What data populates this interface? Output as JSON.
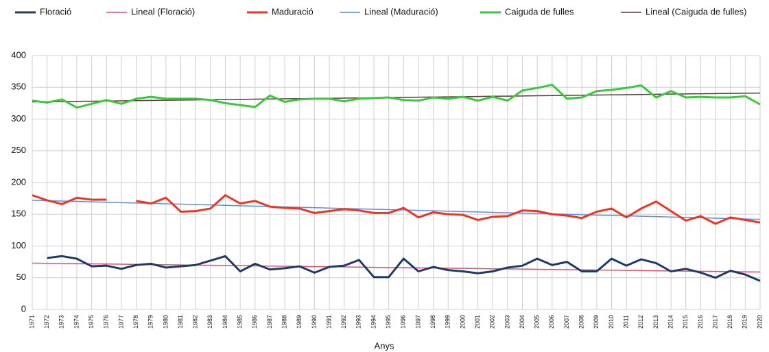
{
  "chart_data": {
    "type": "line",
    "x_label": "Anys",
    "categories": [
      "1971",
      "1972",
      "1973",
      "1974",
      "1975",
      "1976",
      "1977",
      "1978",
      "1979",
      "1980",
      "1981",
      "1982",
      "1983",
      "1984",
      "1985",
      "1986",
      "1987",
      "1988",
      "1989",
      "1990",
      "1991",
      "1992",
      "1993",
      "1994",
      "1995",
      "1996",
      "1997",
      "1998",
      "1999",
      "2000",
      "2001",
      "2002",
      "2003",
      "2004",
      "2005",
      "2006",
      "2007",
      "2008",
      "2009",
      "2010",
      "2011",
      "2012",
      "2013",
      "2014",
      "2015",
      "2016",
      "2017",
      "2018",
      "2019",
      "2020"
    ],
    "series": [
      {
        "name": "Floració",
        "color": "#1f3a68",
        "values": [
          null,
          81,
          84,
          80,
          68,
          69,
          64,
          70,
          72,
          66,
          68,
          70,
          77,
          84,
          60,
          72,
          63,
          65,
          68,
          58,
          67,
          69,
          78,
          51,
          51,
          80,
          60,
          67,
          62,
          60,
          57,
          60,
          66,
          69,
          80,
          70,
          75,
          60,
          60,
          80,
          69,
          79,
          73,
          60,
          64,
          58,
          50,
          61,
          55,
          45
        ]
      },
      {
        "name": "Lineal (Floració)",
        "color": "#e0506a",
        "values": [
          73.0,
          72.7,
          72.4,
          72.1,
          71.9,
          71.6,
          71.3,
          71.0,
          70.7,
          70.4,
          70.1,
          69.9,
          69.6,
          69.3,
          69.0,
          68.7,
          68.4,
          68.1,
          67.9,
          67.6,
          67.3,
          67.0,
          66.7,
          66.4,
          66.1,
          65.9,
          65.6,
          65.3,
          65.0,
          64.7,
          64.4,
          64.1,
          63.9,
          63.6,
          63.3,
          63.0,
          62.7,
          62.4,
          62.1,
          61.9,
          61.6,
          61.3,
          61.0,
          60.7,
          60.4,
          60.1,
          59.9,
          59.6,
          59.3,
          59.0
        ]
      },
      {
        "name": "Maduració",
        "color": "#ee3524",
        "values": [
          180,
          172,
          166,
          176,
          173,
          173,
          null,
          171,
          167,
          176,
          154,
          155,
          159,
          180,
          167,
          171,
          162,
          160,
          159,
          152,
          155,
          158,
          156,
          152,
          152,
          160,
          145,
          153,
          150,
          149,
          141,
          146,
          147,
          156,
          155,
          150,
          148,
          144,
          154,
          159,
          145,
          159,
          170,
          155,
          140,
          147,
          135,
          145,
          141,
          137
        ]
      },
      {
        "name": "Lineal (Maduració)",
        "color": "#5b8ee6",
        "values": [
          172.0,
          171.4,
          170.8,
          170.2,
          169.6,
          168.9,
          168.3,
          167.7,
          167.1,
          166.5,
          165.9,
          165.3,
          164.7,
          164.0,
          163.4,
          162.8,
          162.2,
          161.6,
          161.0,
          160.4,
          159.8,
          159.1,
          158.5,
          157.9,
          157.3,
          156.7,
          156.1,
          155.5,
          154.9,
          154.2,
          153.6,
          153.0,
          152.4,
          151.8,
          151.2,
          150.6,
          150.0,
          149.3,
          148.7,
          148.1,
          147.5,
          146.9,
          146.3,
          145.7,
          145.1,
          144.4,
          143.8,
          143.2,
          142.6,
          142.0
        ]
      },
      {
        "name": "Caiguda de fulles",
        "color": "#3cc83c",
        "values": [
          329,
          326,
          331,
          318,
          324,
          330,
          324,
          332,
          335,
          332,
          332,
          332,
          330,
          325,
          322,
          319,
          337,
          327,
          331,
          332,
          332,
          328,
          332,
          333,
          334,
          330,
          329,
          334,
          332,
          335,
          329,
          335,
          329,
          345,
          349,
          354,
          332,
          334,
          344,
          346,
          349,
          353,
          334,
          344,
          334,
          335,
          334,
          334,
          336,
          323
        ]
      },
      {
        "name": "Lineal (Caiguda de fulles)",
        "color": "#5a3a3a",
        "values": [
          327.0,
          327.3,
          327.6,
          327.9,
          328.1,
          328.4,
          328.7,
          329.0,
          329.3,
          329.6,
          329.9,
          330.1,
          330.4,
          330.7,
          331.0,
          331.3,
          331.6,
          331.9,
          332.1,
          332.4,
          332.7,
          333.0,
          333.3,
          333.6,
          333.9,
          334.1,
          334.4,
          334.7,
          335.0,
          335.3,
          335.6,
          335.9,
          336.1,
          336.4,
          336.7,
          337.0,
          337.3,
          337.6,
          337.9,
          338.1,
          338.4,
          338.7,
          339.0,
          339.3,
          339.6,
          339.9,
          340.1,
          340.4,
          340.7,
          341.0
        ]
      }
    ],
    "ylim": [
      0,
      400
    ],
    "yticks": [
      0,
      50,
      100,
      150,
      200,
      250,
      300,
      350,
      400
    ],
    "grid": true
  }
}
